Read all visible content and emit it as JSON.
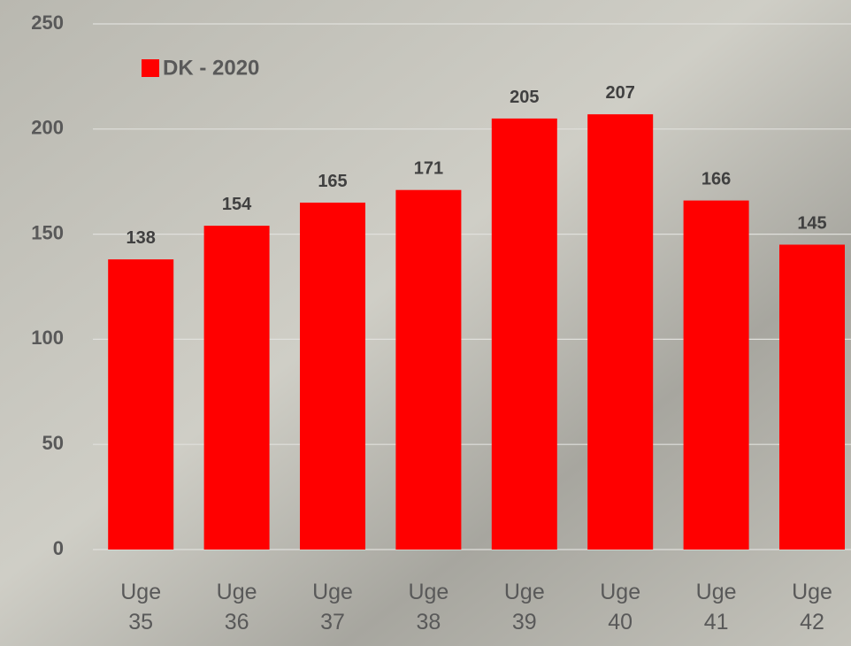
{
  "chart_data": {
    "type": "bar",
    "categories": [
      "Uge 35",
      "Uge 36",
      "Uge 37",
      "Uge 38",
      "Uge 39",
      "Uge 40",
      "Uge 41",
      "Uge 42"
    ],
    "series": [
      {
        "name": "DK - 2020",
        "color": "#ff0000",
        "values": [
          138,
          154,
          165,
          171,
          205,
          207,
          166,
          145
        ]
      }
    ],
    "ylim": [
      0,
      250
    ],
    "yticks": [
      0,
      50,
      100,
      150,
      200,
      250
    ],
    "grid": true,
    "legend": "top-left"
  }
}
